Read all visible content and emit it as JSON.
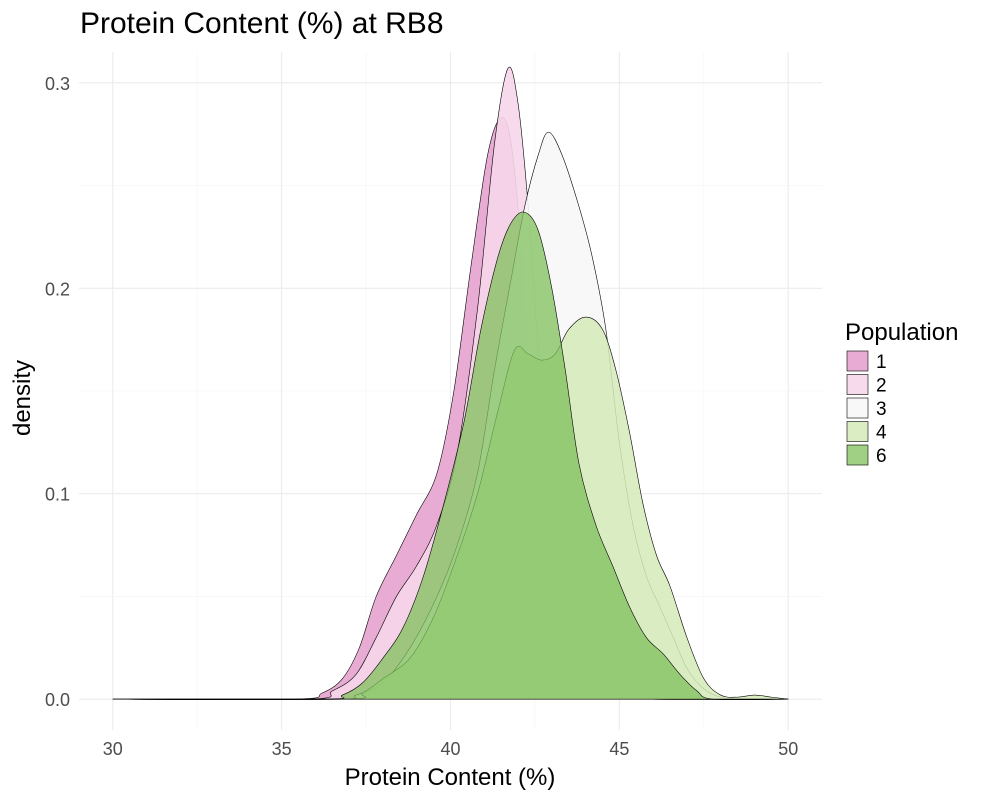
{
  "chart_data": {
    "type": "area",
    "subtype": "density",
    "title": "Protein Content (%) at RB8",
    "xlabel": "Protein Content (%)",
    "ylabel": "density",
    "xlim": [
      29,
      51
    ],
    "ylim": [
      -0.015,
      0.315
    ],
    "x_ticks": [
      30,
      35,
      40,
      45,
      50
    ],
    "y_ticks": [
      0.0,
      0.1,
      0.2,
      0.3
    ],
    "x_tick_labels": [
      "30",
      "35",
      "40",
      "45",
      "50"
    ],
    "y_tick_labels": [
      "0.0",
      "0.1",
      "0.2",
      "0.3"
    ],
    "grid": true,
    "legend": {
      "title": "Population",
      "position": "right",
      "entries": [
        "1",
        "2",
        "3",
        "4",
        "6"
      ]
    },
    "series": [
      {
        "name": "1",
        "color": "#e7a8d2",
        "opacity": 0.95,
        "points": [
          [
            30,
            0
          ],
          [
            35.4,
            0
          ],
          [
            36.2,
            0.003
          ],
          [
            36.8,
            0.01
          ],
          [
            37.3,
            0.025
          ],
          [
            37.8,
            0.05
          ],
          [
            38.4,
            0.07
          ],
          [
            39,
            0.09
          ],
          [
            39.6,
            0.11
          ],
          [
            40.1,
            0.15
          ],
          [
            40.6,
            0.21
          ],
          [
            41.1,
            0.265
          ],
          [
            41.5,
            0.283
          ],
          [
            41.8,
            0.27
          ],
          [
            42.1,
            0.22
          ],
          [
            42.4,
            0.15
          ],
          [
            42.7,
            0.09
          ],
          [
            43,
            0.055
          ],
          [
            43.4,
            0.03
          ],
          [
            44,
            0.012
          ],
          [
            44.6,
            0.004
          ],
          [
            45.2,
            0.001
          ],
          [
            46,
            0
          ],
          [
            50,
            0
          ]
        ]
      },
      {
        "name": "2",
        "color": "#f6d6ea",
        "opacity": 0.9,
        "points": [
          [
            30,
            0
          ],
          [
            35.8,
            0
          ],
          [
            36.5,
            0.004
          ],
          [
            37.2,
            0.012
          ],
          [
            37.8,
            0.03
          ],
          [
            38.4,
            0.05
          ],
          [
            39,
            0.065
          ],
          [
            39.6,
            0.085
          ],
          [
            40.2,
            0.12
          ],
          [
            40.8,
            0.19
          ],
          [
            41.3,
            0.27
          ],
          [
            41.7,
            0.307
          ],
          [
            42,
            0.29
          ],
          [
            42.3,
            0.24
          ],
          [
            42.6,
            0.17
          ],
          [
            43,
            0.1
          ],
          [
            43.4,
            0.06
          ],
          [
            43.8,
            0.035
          ],
          [
            44.2,
            0.02
          ],
          [
            44.8,
            0.008
          ],
          [
            45.4,
            0.002
          ],
          [
            46,
            0
          ],
          [
            50,
            0
          ]
        ]
      },
      {
        "name": "3",
        "color": "#f7f7f7",
        "opacity": 0.9,
        "points": [
          [
            30,
            0
          ],
          [
            36.5,
            0
          ],
          [
            37.2,
            0.002
          ],
          [
            38,
            0.008
          ],
          [
            38.8,
            0.025
          ],
          [
            39.6,
            0.05
          ],
          [
            40.2,
            0.075
          ],
          [
            40.8,
            0.11
          ],
          [
            41.3,
            0.16
          ],
          [
            41.8,
            0.205
          ],
          [
            42.2,
            0.24
          ],
          [
            42.6,
            0.265
          ],
          [
            42.9,
            0.276
          ],
          [
            43.3,
            0.265
          ],
          [
            43.8,
            0.24
          ],
          [
            44.2,
            0.215
          ],
          [
            44.6,
            0.18
          ],
          [
            45,
            0.125
          ],
          [
            45.4,
            0.085
          ],
          [
            45.8,
            0.06
          ],
          [
            46.2,
            0.045
          ],
          [
            46.6,
            0.03
          ],
          [
            47,
            0.015
          ],
          [
            47.5,
            0.005
          ],
          [
            48,
            0.001
          ],
          [
            48.5,
            0
          ],
          [
            50,
            0
          ]
        ]
      },
      {
        "name": "4",
        "color": "#d5eab8",
        "opacity": 0.85,
        "points": [
          [
            30,
            0
          ],
          [
            36.8,
            0
          ],
          [
            37.4,
            0.003
          ],
          [
            38,
            0.01
          ],
          [
            38.8,
            0.02
          ],
          [
            39.5,
            0.04
          ],
          [
            40.2,
            0.07
          ],
          [
            40.8,
            0.1
          ],
          [
            41.4,
            0.14
          ],
          [
            41.9,
            0.17
          ],
          [
            42.3,
            0.168
          ],
          [
            42.7,
            0.165
          ],
          [
            43.1,
            0.168
          ],
          [
            43.5,
            0.18
          ],
          [
            44,
            0.186
          ],
          [
            44.5,
            0.18
          ],
          [
            44.9,
            0.16
          ],
          [
            45.3,
            0.13
          ],
          [
            45.7,
            0.095
          ],
          [
            46.1,
            0.07
          ],
          [
            46.5,
            0.055
          ],
          [
            47,
            0.03
          ],
          [
            47.5,
            0.01
          ],
          [
            48,
            0.002
          ],
          [
            48.5,
            0.001
          ],
          [
            49,
            0.002
          ],
          [
            49.5,
            0.001
          ],
          [
            50,
            0
          ]
        ]
      },
      {
        "name": "6",
        "color": "#7fc05b",
        "opacity": 0.75,
        "points": [
          [
            30,
            0
          ],
          [
            36.2,
            0
          ],
          [
            36.8,
            0.002
          ],
          [
            37.4,
            0.008
          ],
          [
            38,
            0.02
          ],
          [
            38.6,
            0.035
          ],
          [
            39.2,
            0.06
          ],
          [
            39.8,
            0.095
          ],
          [
            40.4,
            0.135
          ],
          [
            40.9,
            0.18
          ],
          [
            41.4,
            0.215
          ],
          [
            41.8,
            0.232
          ],
          [
            42.2,
            0.237
          ],
          [
            42.6,
            0.228
          ],
          [
            43,
            0.2
          ],
          [
            43.4,
            0.16
          ],
          [
            43.8,
            0.115
          ],
          [
            44.3,
            0.085
          ],
          [
            44.8,
            0.065
          ],
          [
            45.3,
            0.045
          ],
          [
            45.8,
            0.03
          ],
          [
            46.3,
            0.022
          ],
          [
            46.8,
            0.012
          ],
          [
            47.3,
            0.004
          ],
          [
            47.8,
            0
          ],
          [
            50,
            0
          ]
        ]
      }
    ]
  }
}
